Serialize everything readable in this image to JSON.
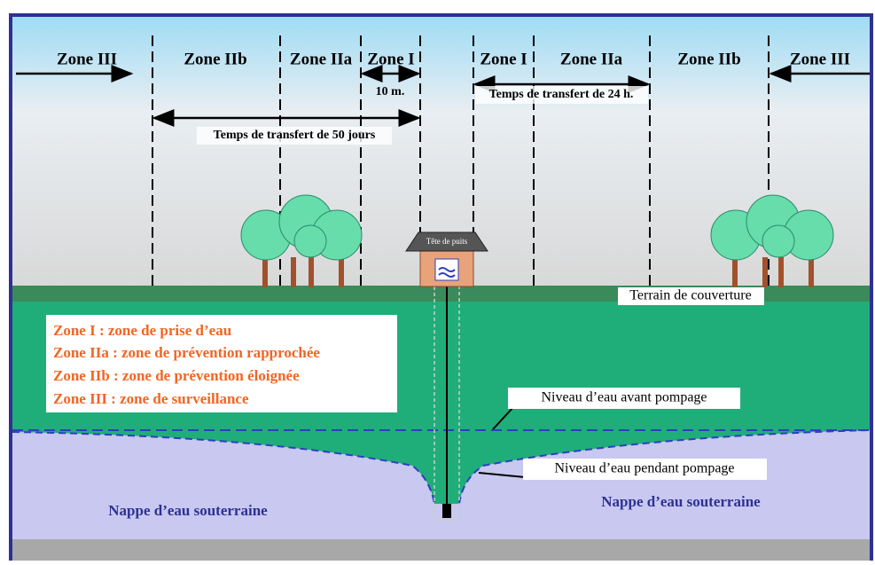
{
  "zones_left": [
    "Zone III",
    "Zone IIb",
    "Zone IIa",
    "Zone I"
  ],
  "zones_right": [
    "Zone I",
    "Zone IIa",
    "Zone IIb",
    "Zone III"
  ],
  "annotations": {
    "distance": "10 m.",
    "transfer_24h": "Temps de transfert de 24 h.",
    "transfer_50d": "Temps de transfert de 50 jours",
    "well_head": "Tête de puits",
    "cover": "Terrain de couverture",
    "level_before": "Niveau d’eau avant pompage",
    "level_during": "Niveau d’eau pendant pompage",
    "aquifer_left": "Nappe d’eau souterraine",
    "aquifer_right": "Nappe d’eau souterraine"
  },
  "legend": [
    "Zone I : zone de prise d’eau",
    "Zone IIa : zone de prévention rapprochée",
    "Zone IIb : zone de prévention éloignée",
    "Zone III : zone de surveillance"
  ]
}
